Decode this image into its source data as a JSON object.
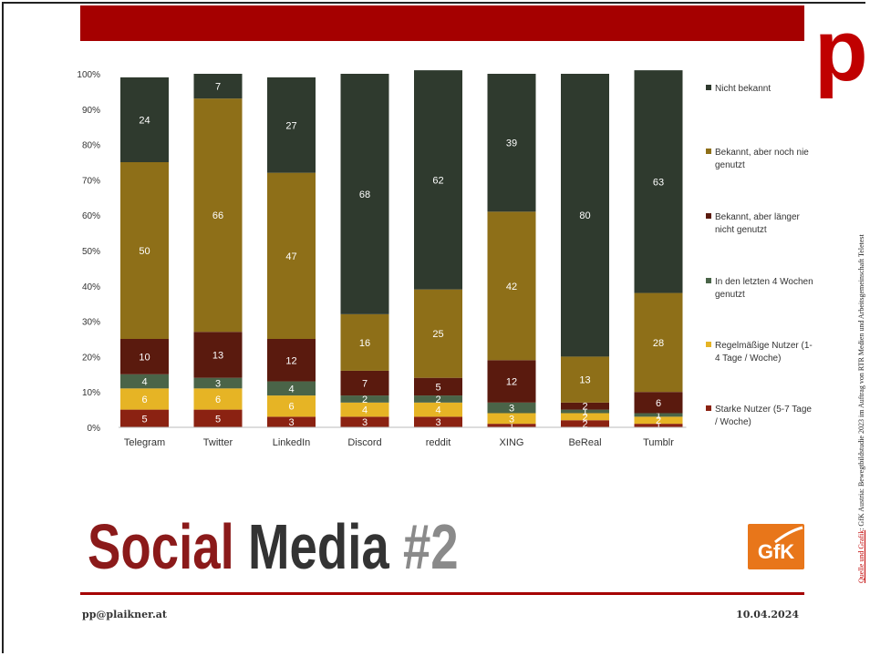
{
  "slide": {
    "title_word1": "Social",
    "title_word2": "Media",
    "title_word3": "#2",
    "email": "pp@plaikner.at",
    "date": "10.04.2024",
    "logo_letter": "p",
    "gfk_logo_text": "GfK",
    "source_link_text": "Quelle und Grafik",
    "source_text": ": GfK Austria: Bewegtbildstudie 2023 im Auftrag von RTR Medien und Arbeitsgemeinschaft Teletest"
  },
  "chart_data": {
    "type": "bar",
    "stacked": true,
    "categories": [
      "Telegram",
      "Twitter",
      "LinkedIn",
      "Discord",
      "reddit",
      "XING",
      "BeReal",
      "Tumblr"
    ],
    "ylim": [
      0,
      100
    ],
    "yticks": [
      "0%",
      "10%",
      "20%",
      "30%",
      "40%",
      "50%",
      "60%",
      "70%",
      "80%",
      "90%",
      "100%"
    ],
    "legend_position": "right",
    "series": [
      {
        "name": "Starke Nutzer (5-7 Tage / Woche)",
        "color": "#8b2212",
        "values": [
          5,
          5,
          3,
          3,
          3,
          1,
          2,
          1
        ]
      },
      {
        "name": "Regelmäßige Nutzer (1-4 Tage / Woche)",
        "color": "#e6b425",
        "values": [
          6,
          6,
          6,
          4,
          4,
          3,
          2,
          2
        ]
      },
      {
        "name": "In den letzten 4 Wochen genutzt",
        "color": "#4a6448",
        "values": [
          4,
          3,
          4,
          2,
          2,
          3,
          1,
          1
        ]
      },
      {
        "name": "Bekannt, aber länger nicht genutzt",
        "color": "#5a1a0e",
        "values": [
          10,
          13,
          12,
          7,
          5,
          12,
          2,
          6
        ]
      },
      {
        "name": "Bekannt, aber noch nie genutzt",
        "color": "#8e6f18",
        "values": [
          50,
          66,
          47,
          16,
          25,
          42,
          13,
          28
        ]
      },
      {
        "name": "Nicht bekannt",
        "color": "#2f3a2e",
        "values": [
          24,
          7,
          27,
          68,
          62,
          39,
          80,
          63
        ]
      }
    ],
    "legend": [
      {
        "lines": [
          "Nicht bekannt"
        ],
        "color": "#2f3a2e"
      },
      {
        "lines": [
          "Bekannt, aber noch nie",
          "genutzt"
        ],
        "color": "#8e6f18"
      },
      {
        "lines": [
          "Bekannt, aber länger",
          "nicht genutzt"
        ],
        "color": "#5a1a0e"
      },
      {
        "lines": [
          "In den letzten 4 Wochen",
          "genutzt"
        ],
        "color": "#4a6448"
      },
      {
        "lines": [
          "Regelmäßige Nutzer (1-",
          "4 Tage / Woche)"
        ],
        "color": "#e6b425"
      },
      {
        "lines": [
          "Starke Nutzer (5-7 Tage",
          "/ Woche)"
        ],
        "color": "#8b2212"
      }
    ]
  }
}
